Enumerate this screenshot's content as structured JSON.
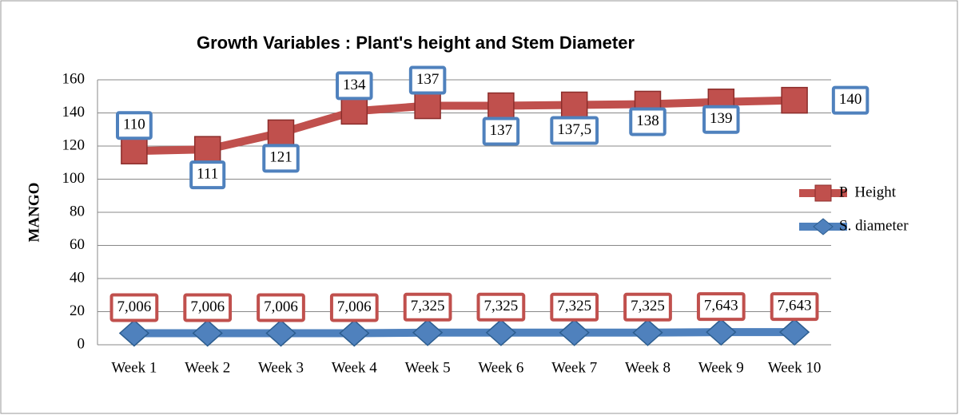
{
  "chart_data": {
    "type": "line",
    "stacked": true,
    "title": "Growth Variables : Plant's height and Stem Diameter",
    "y_label": "MANGO",
    "categories": [
      "Week 1",
      "Week 2",
      "Week 3",
      "Week 4",
      "Week 5",
      "Week 6",
      "Week 7",
      "Week 8",
      "Week 9",
      "Week 10"
    ],
    "series": [
      {
        "name": "S. diameter",
        "color": "#4f81bd",
        "marker": "diamond",
        "label_border": "#c0504d",
        "values": [
          7.006,
          7.006,
          7.006,
          7.006,
          7.325,
          7.325,
          7.325,
          7.325,
          7.643,
          7.643
        ],
        "value_labels": [
          "7,006",
          "7,006",
          "7,006",
          "7,006",
          "7,325",
          "7,325",
          "7,325",
          "7,325",
          "7,643",
          "7,643"
        ]
      },
      {
        "name": "P  Height",
        "color": "#c0504d",
        "marker": "square",
        "label_border": "#4f81bd",
        "values": [
          110,
          111,
          121,
          134,
          137,
          137,
          137.5,
          138,
          139,
          140
        ],
        "value_labels": [
          "110",
          "111",
          "121",
          "134",
          "137",
          "137",
          "137,5",
          "138",
          "139",
          "140"
        ]
      }
    ],
    "ylim": [
      0,
      160
    ],
    "yticks": [
      0,
      20,
      40,
      60,
      80,
      100,
      120,
      140,
      160
    ],
    "grid": true,
    "legend": "right"
  }
}
